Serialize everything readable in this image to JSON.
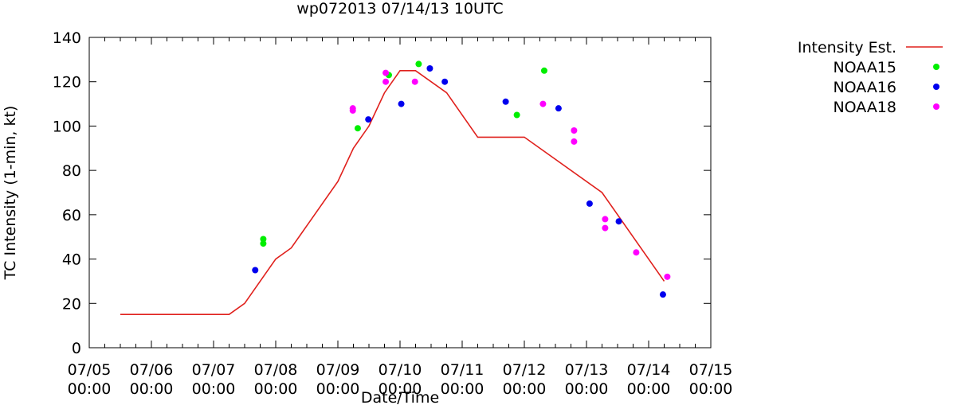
{
  "chart_data": {
    "type": "scatter",
    "title": "wp072013 07/14/13 10UTC",
    "xlabel": "Date/Time",
    "ylabel": "TC Intensity (1-min, kt)",
    "xlim": [
      0,
      10
    ],
    "ylim": [
      0,
      140
    ],
    "y_ticks": [
      0,
      20,
      40,
      60,
      80,
      100,
      120,
      140
    ],
    "x_ticks": [
      {
        "value": 0,
        "line1": "07/05",
        "line2": "00:00"
      },
      {
        "value": 1,
        "line1": "07/06",
        "line2": "00:00"
      },
      {
        "value": 2,
        "line1": "07/07",
        "line2": "00:00"
      },
      {
        "value": 3,
        "line1": "07/08",
        "line2": "00:00"
      },
      {
        "value": 4,
        "line1": "07/09",
        "line2": "00:00"
      },
      {
        "value": 5,
        "line1": "07/10",
        "line2": "00:00"
      },
      {
        "value": 6,
        "line1": "07/11",
        "line2": "00:00"
      },
      {
        "value": 7,
        "line1": "07/12",
        "line2": "00:00"
      },
      {
        "value": 8,
        "line1": "07/13",
        "line2": "00:00"
      },
      {
        "value": 9,
        "line1": "07/14",
        "line2": "00:00"
      },
      {
        "value": 10,
        "line1": "07/15",
        "line2": "00:00"
      }
    ],
    "grid": false,
    "legend_position": "outside-top-right",
    "series": [
      {
        "name": "Intensity Est.",
        "kind": "line",
        "color": "#e0201c",
        "points": [
          [
            0.5,
            15
          ],
          [
            2.25,
            15
          ],
          [
            2.5,
            20
          ],
          [
            3.0,
            40
          ],
          [
            3.25,
            45
          ],
          [
            4.0,
            75
          ],
          [
            4.25,
            90
          ],
          [
            4.5,
            100
          ],
          [
            4.75,
            115
          ],
          [
            5.0,
            125
          ],
          [
            5.25,
            125
          ],
          [
            5.75,
            115
          ],
          [
            6.25,
            95
          ],
          [
            7.0,
            95
          ],
          [
            8.25,
            70
          ],
          [
            9.25,
            30
          ]
        ]
      },
      {
        "name": "NOAA15",
        "kind": "points",
        "color": "#00ee00",
        "points": [
          [
            2.8,
            49
          ],
          [
            2.8,
            47
          ],
          [
            4.32,
            99
          ],
          [
            4.82,
            123
          ],
          [
            5.3,
            128
          ],
          [
            6.88,
            105
          ],
          [
            7.32,
            125
          ]
        ]
      },
      {
        "name": "NOAA16",
        "kind": "points",
        "color": "#0000ee",
        "points": [
          [
            2.67,
            35
          ],
          [
            4.49,
            103
          ],
          [
            5.02,
            110
          ],
          [
            5.48,
            126
          ],
          [
            5.72,
            120
          ],
          [
            6.7,
            111
          ],
          [
            7.55,
            108
          ],
          [
            8.05,
            65
          ],
          [
            8.52,
            57
          ],
          [
            9.23,
            24
          ]
        ]
      },
      {
        "name": "NOAA18",
        "kind": "points",
        "color": "#ff00ff",
        "points": [
          [
            4.24,
            108
          ],
          [
            4.24,
            107
          ],
          [
            4.77,
            124
          ],
          [
            4.77,
            120
          ],
          [
            5.24,
            120
          ],
          [
            7.3,
            110
          ],
          [
            7.8,
            98
          ],
          [
            7.8,
            93
          ],
          [
            8.3,
            58
          ],
          [
            8.3,
            54
          ],
          [
            8.8,
            43
          ],
          [
            9.3,
            32
          ]
        ]
      }
    ]
  }
}
